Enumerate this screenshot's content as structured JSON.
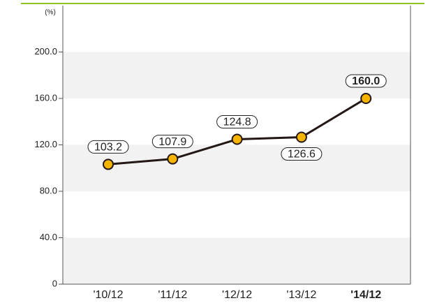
{
  "chart_data": {
    "type": "line",
    "y_unit": "(%)",
    "categories": [
      "'10/12",
      "'11/12",
      "'12/12",
      "'13/12",
      "'14/12"
    ],
    "values": [
      103.2,
      107.9,
      124.8,
      126.6,
      160.0
    ],
    "value_labels": [
      "103.2",
      "107.9",
      "124.8",
      "126.6",
      "160.0"
    ],
    "color": "#231815",
    "marker_color": "#f4b400",
    "ylim": [
      0,
      240
    ],
    "yticks": [
      0,
      {
        "value": 40,
        "label": "40.0"
      },
      {
        "value": 80,
        "label": "80.0"
      },
      {
        "value": 120,
        "label": "120.0"
      },
      {
        "value": 160,
        "label": "160.0"
      },
      {
        "value": 200,
        "label": "200.0"
      }
    ],
    "grid": true
  }
}
